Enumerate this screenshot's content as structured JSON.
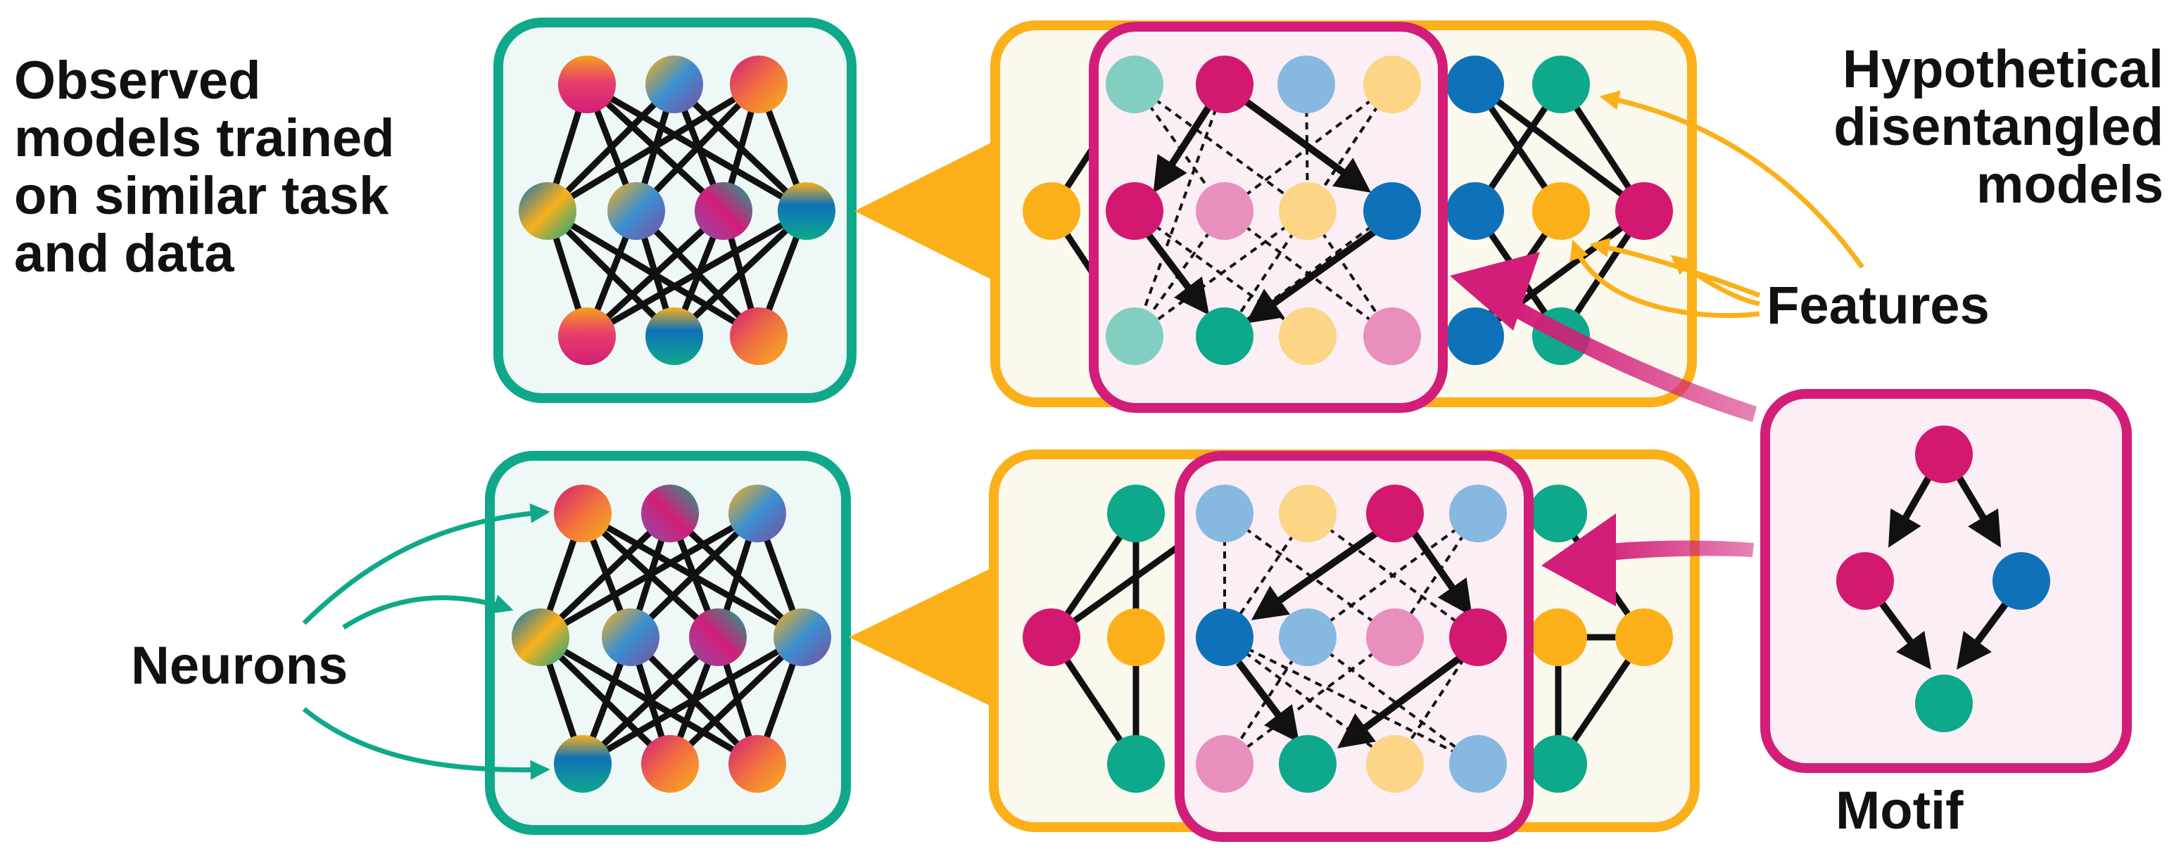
{
  "labels": {
    "observed": "Observed\nmodels trained\non similar task\nand data",
    "hypothetical": "Hypothetical\ndisentangled\nmodels",
    "features": "Features",
    "neurons": "Neurons",
    "motif": "Motif"
  },
  "colors": {
    "teal_border": "#0fa88a",
    "teal_fill": "#eef8f6",
    "orange_border": "#fbb01a",
    "orange_fill": "#fbf8ee",
    "magenta_border": "#d21e78",
    "magenta_fill": "#fbeef5",
    "node_magenta": "#d3186f",
    "node_pink_light": "#e88fbd",
    "node_blue": "#0f72b9",
    "node_blue_light": "#86b8e0",
    "node_teal": "#0ea88a",
    "node_teal_light": "#82cfc2",
    "node_orange": "#fbb01a",
    "node_orange_light": "#fcd586"
  },
  "icons": [
    "arrow-icon"
  ]
}
